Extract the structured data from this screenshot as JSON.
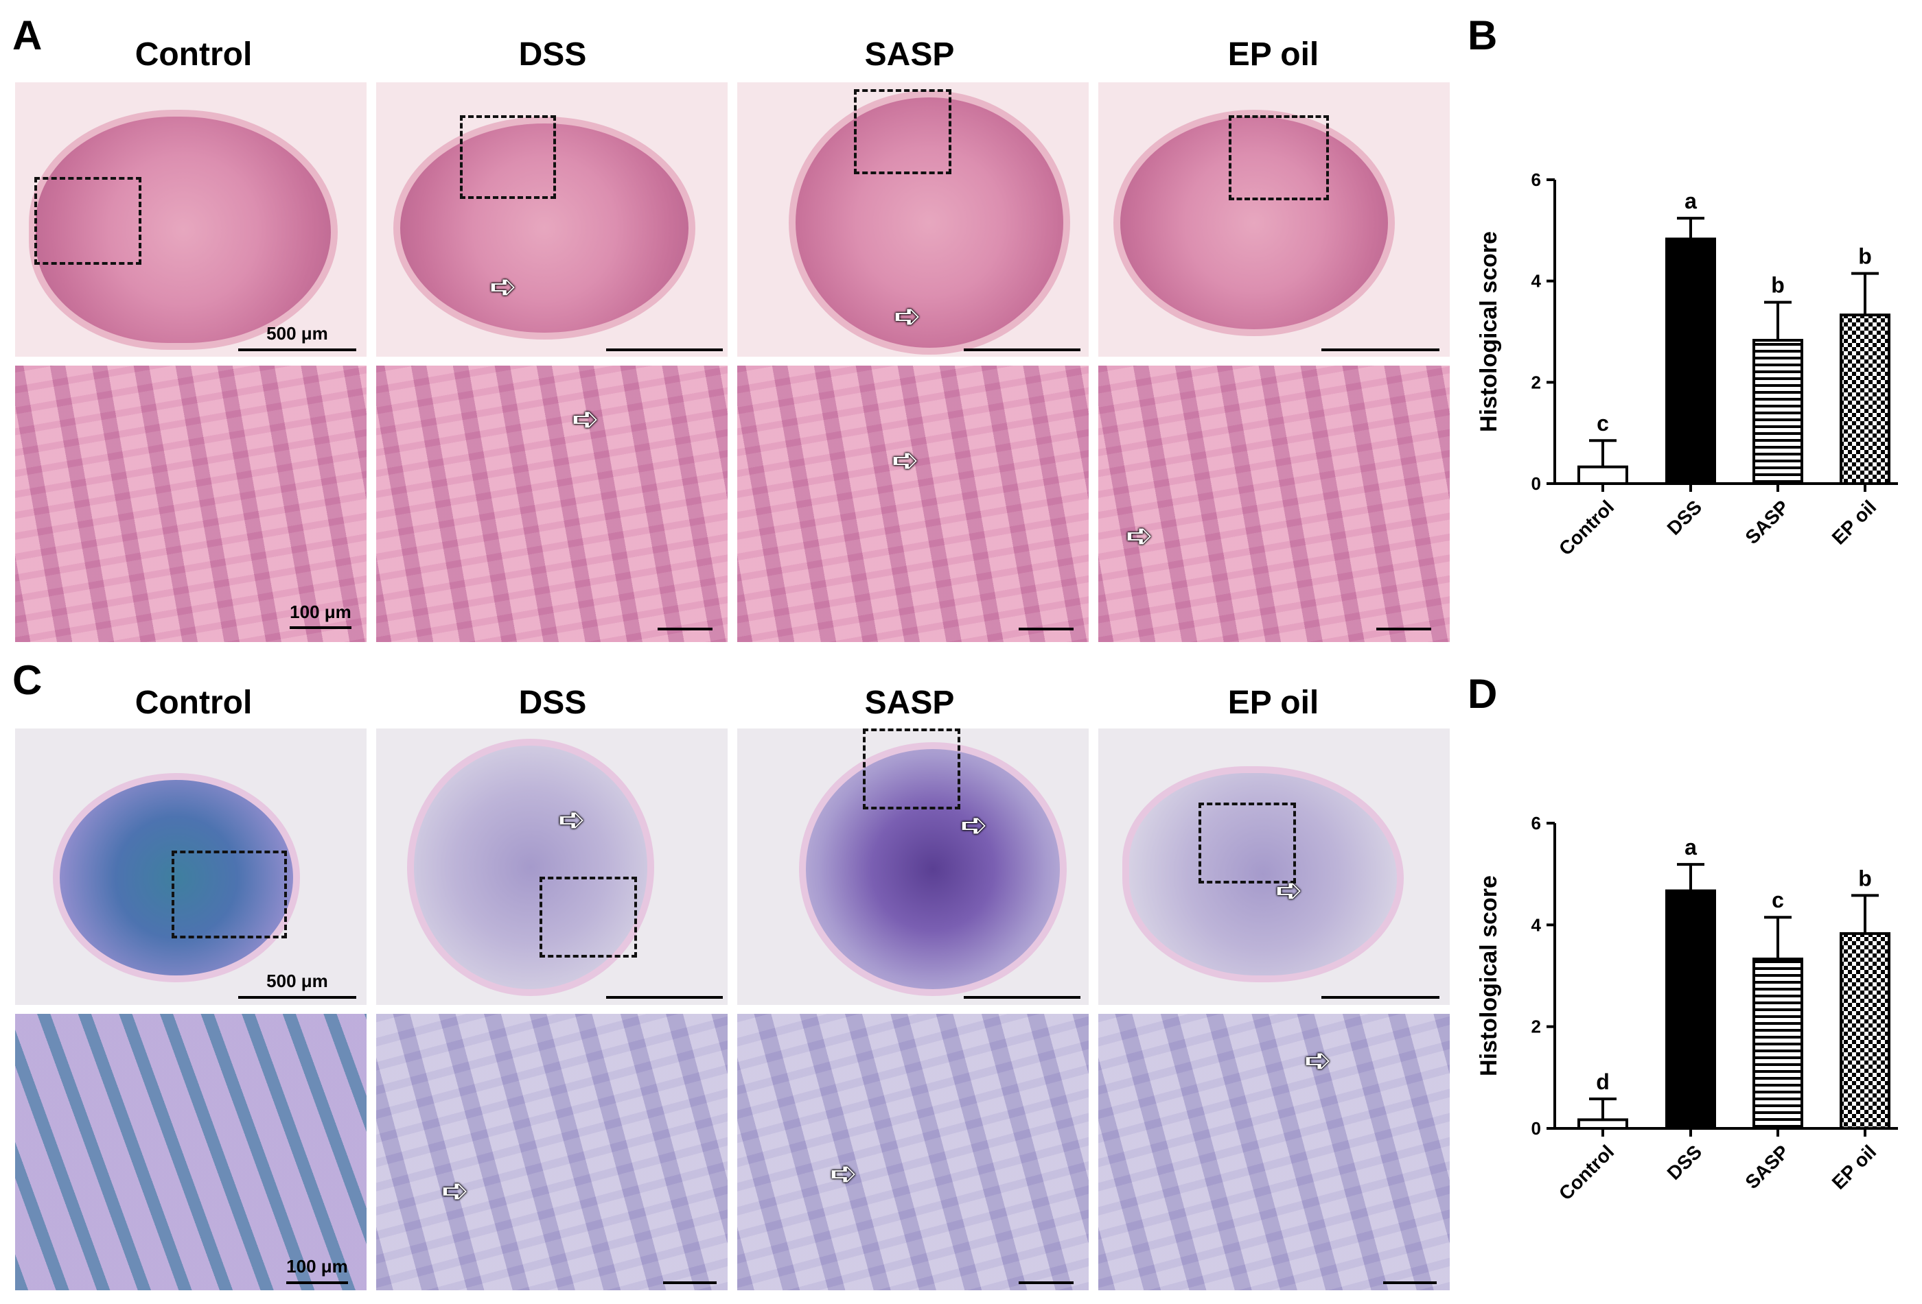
{
  "figure": {
    "panels": [
      {
        "letter": "A"
      },
      {
        "letter": "B"
      },
      {
        "letter": "C"
      },
      {
        "letter": "D"
      }
    ],
    "columns": [
      "Control",
      "DSS",
      "SASP",
      "EP oil"
    ],
    "scale_top": "500 μm",
    "scale_zoom": "100 μm"
  },
  "chart_data": [
    {
      "type": "bar",
      "panel": "B",
      "categories": [
        "Control",
        "DSS",
        "SASP",
        "EP oil"
      ],
      "values": [
        0.33,
        4.83,
        2.83,
        3.33
      ],
      "errors": [
        0.52,
        0.41,
        0.75,
        0.82
      ],
      "significance": [
        "c",
        "a",
        "b",
        "b"
      ],
      "ylabel": "Histological score",
      "ylim": [
        0,
        6
      ],
      "yticks": [
        0,
        2,
        4,
        6
      ],
      "fills": [
        "white",
        "black",
        "horizontal-stripes",
        "checkerboard"
      ]
    },
    {
      "type": "bar",
      "panel": "D",
      "categories": [
        "Control",
        "DSS",
        "SASP",
        "EP oil"
      ],
      "values": [
        0.17,
        4.67,
        3.33,
        3.83
      ],
      "errors": [
        0.41,
        0.52,
        0.82,
        0.75
      ],
      "significance": [
        "d",
        "a",
        "c",
        "b"
      ],
      "ylabel": "Histological score",
      "ylim": [
        0,
        6
      ],
      "yticks": [
        0,
        2,
        4,
        6
      ],
      "fills": [
        "white",
        "black",
        "horizontal-stripes",
        "checkerboard"
      ]
    }
  ]
}
